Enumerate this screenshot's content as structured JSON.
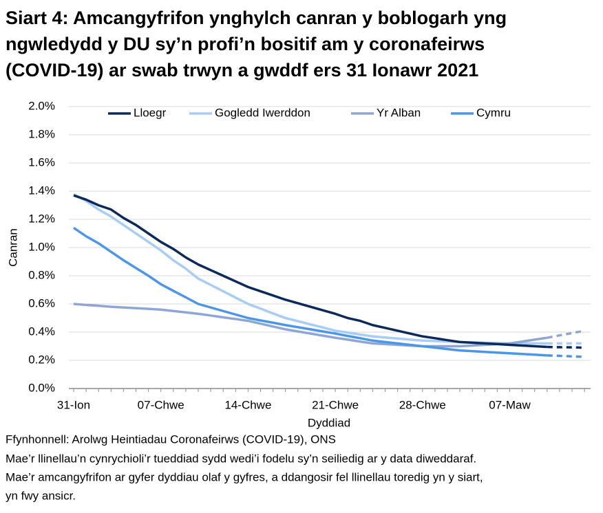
{
  "chart_data": {
    "type": "line",
    "title": [
      "Siart 4: Amcangyfrifon ynghylch canran y boblogarh yng",
      "ngwledydd y DU sy’n profi’n bositif am y coronafeirws",
      "(COVID-19) ar swab trwyn a gwddf ers 31 Ionawr 2021"
    ],
    "y_label": "Canran",
    "x_label": "Dyddiad",
    "notes": [
      "Ffynhonnell: Arolwg Heintiadau Coronafeirws (COVID-19), ONS",
      "Mae’r llinellau’n cynrychioli’r tueddiad sydd wedi’i fodelu sy’n seiliedig ar y data diweddaraf.",
      "Mae’r amcangyfrifon ar gyfer dyddiau olaf y gyfres, a ddangosir fel llinellau toredig yn y siart,",
      "yn fwy ansicr."
    ],
    "categories": [
      "31-Ion",
      null,
      null,
      null,
      null,
      null,
      null,
      "07-Chwe",
      null,
      null,
      null,
      null,
      null,
      null,
      "14-Chwe",
      null,
      null,
      null,
      null,
      null,
      null,
      "21-Chwe",
      null,
      null,
      null,
      null,
      null,
      null,
      "28-Chwe",
      null,
      null,
      null,
      null,
      null,
      null,
      "07-Maw",
      null,
      null,
      null,
      null,
      null,
      null
    ],
    "dashed_from_index": 38,
    "series": [
      {
        "name": "Lloegr",
        "color": "#0b2a5b",
        "values": [
          1.37,
          1.34,
          1.3,
          1.27,
          1.21,
          1.16,
          1.1,
          1.04,
          0.99,
          0.93,
          0.88,
          0.84,
          0.8,
          0.76,
          0.72,
          0.69,
          0.66,
          0.63,
          0.605,
          0.58,
          0.555,
          0.53,
          0.5,
          0.48,
          0.45,
          0.43,
          0.41,
          0.39,
          0.37,
          0.357,
          0.343,
          0.33,
          0.325,
          0.32,
          0.315,
          0.31,
          0.305,
          0.3,
          0.295,
          0.293,
          0.292,
          0.29
        ]
      },
      {
        "name": "Gogledd Iwerddon",
        "color": "#a8cdf5",
        "values": [
          1.38,
          1.33,
          1.27,
          1.22,
          1.16,
          1.1,
          1.04,
          0.98,
          0.91,
          0.85,
          0.78,
          0.735,
          0.69,
          0.645,
          0.6,
          0.567,
          0.533,
          0.5,
          0.478,
          0.455,
          0.433,
          0.41,
          0.397,
          0.383,
          0.37,
          0.362,
          0.355,
          0.347,
          0.34,
          0.337,
          0.333,
          0.33,
          0.328,
          0.325,
          0.323,
          0.32,
          0.32,
          0.32,
          0.32,
          0.32,
          0.32,
          0.32
        ]
      },
      {
        "name": "Yr Alban",
        "color": "#8ea6d6",
        "values": [
          0.6,
          0.593,
          0.587,
          0.58,
          0.575,
          0.57,
          0.565,
          0.56,
          0.55,
          0.54,
          0.53,
          0.518,
          0.505,
          0.493,
          0.48,
          0.46,
          0.44,
          0.42,
          0.405,
          0.39,
          0.375,
          0.36,
          0.347,
          0.333,
          0.32,
          0.315,
          0.31,
          0.305,
          0.3,
          0.3,
          0.3,
          0.3,
          0.305,
          0.31,
          0.315,
          0.32,
          0.333,
          0.347,
          0.36,
          0.377,
          0.393,
          0.41
        ]
      },
      {
        "name": "Cymru",
        "color": "#4b96e8",
        "values": [
          1.14,
          1.08,
          1.03,
          0.97,
          0.91,
          0.855,
          0.8,
          0.74,
          0.693,
          0.647,
          0.6,
          0.575,
          0.55,
          0.525,
          0.5,
          0.483,
          0.467,
          0.45,
          0.435,
          0.42,
          0.405,
          0.39,
          0.373,
          0.357,
          0.34,
          0.33,
          0.32,
          0.31,
          0.3,
          0.29,
          0.28,
          0.27,
          0.265,
          0.26,
          0.255,
          0.25,
          0.245,
          0.24,
          0.235,
          0.232,
          0.228,
          0.225
        ]
      }
    ],
    "ylim": [
      0,
      2
    ],
    "yticks": [
      {
        "value": 0,
        "label": "0.0%"
      },
      {
        "value": 0.2,
        "label": "0.2%"
      },
      {
        "value": 0.4,
        "label": "0.4%"
      },
      {
        "value": 0.6,
        "label": "0.6%"
      },
      {
        "value": 0.8,
        "label": "0.8%"
      },
      {
        "value": 1.0,
        "label": "1.0%"
      },
      {
        "value": 1.2,
        "label": "1.2%"
      },
      {
        "value": 1.4,
        "label": "1.4%"
      },
      {
        "value": 1.6,
        "label": "1.6%"
      },
      {
        "value": 1.8,
        "label": "1.8%"
      },
      {
        "value": 2.0,
        "label": "2.0%"
      }
    ],
    "grid": true,
    "legend": "top"
  }
}
